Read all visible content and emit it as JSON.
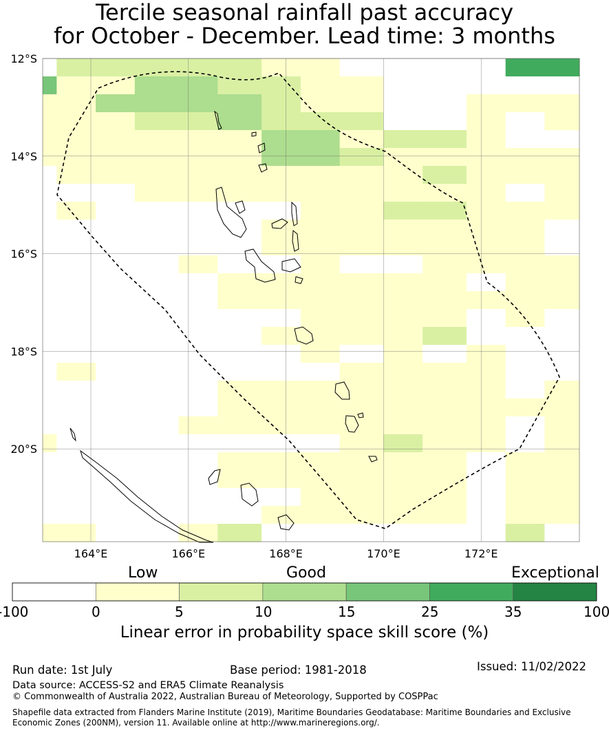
{
  "title": {
    "line1": "Tercile seasonal rainfall past accuracy",
    "line2": "for October - December. Lead time: 3 months"
  },
  "map": {
    "lat_labels": [
      "12°S",
      "14°S",
      "16°S",
      "18°S",
      "20°S"
    ],
    "lon_labels": [
      "164°E",
      "166°E",
      "168°E",
      "170°E",
      "172°E"
    ],
    "extent": {
      "lon_min": 163,
      "lon_max": 174,
      "lat_min": -21.9,
      "lat_max": -12
    },
    "grid_origin": {
      "lon": 163,
      "lat": -12
    },
    "grid_cols": [
      "163.0",
      "163.3",
      "164.1",
      "164.9",
      "165.8",
      "166.6",
      "167.5",
      "168.3",
      "169.1",
      "170.0",
      "170.8",
      "171.7",
      "172.5",
      "173.3"
    ],
    "cells": [
      "02222211000055",
      "41133221100000",
      "11333321100111",
      "11122322200101",
      "11111133122100",
      "11111133211111",
      "01111111112111",
      "00011111111101",
      "01000001122111",
      "00000011111110",
      "00000011111110",
      "00001001001111",
      "00000111111011",
      "00000111111111",
      "00000001111010",
      "00000011112000",
      "00000001010100",
      "01000000111100",
      "00000111111101",
      "00000111111111",
      "00001111111101",
      "10000000121101",
      "00000111111011",
      "00000111111011",
      "00000001111011",
      "00000011111011",
      "11001200000020"
    ],
    "cell_values": [
      0,
      5,
      10,
      15,
      25,
      35
    ],
    "boundary": "dashed EEZ outline"
  },
  "colorbar": {
    "categories": [
      "Low",
      "Good",
      "Exceptional"
    ],
    "ticks": [
      "-100",
      "0",
      "5",
      "10",
      "15",
      "25",
      "35",
      "100"
    ],
    "colors": [
      "#ffffff",
      "#ffffcc",
      "#d9f0a3",
      "#addd8e",
      "#78c679",
      "#41ab5d",
      "#238443"
    ],
    "label": "Linear error in probability space skill score (%)"
  },
  "footer": {
    "run_date": "Run date: 1st July",
    "base_period": "Base period: 1981-2018",
    "issued": "Issued: 11/02/2022",
    "data_source": "Data source: ACCESS-S2 and ERA5 Climate Reanalysis",
    "copyright": "© Commonwealth of Australia 2022, Australian Bureau of Meteorology, Supported by COSPPac",
    "shapefile_line1": "Shapefile data extracted from Flanders Marine Institute (2019), Maritime Boundaries Geodatabase: Maritime Boundaries and Exclusive",
    "shapefile_line2": "Economic Zones (200NM), version 11. Available online at http://www.marineregions.org/."
  }
}
